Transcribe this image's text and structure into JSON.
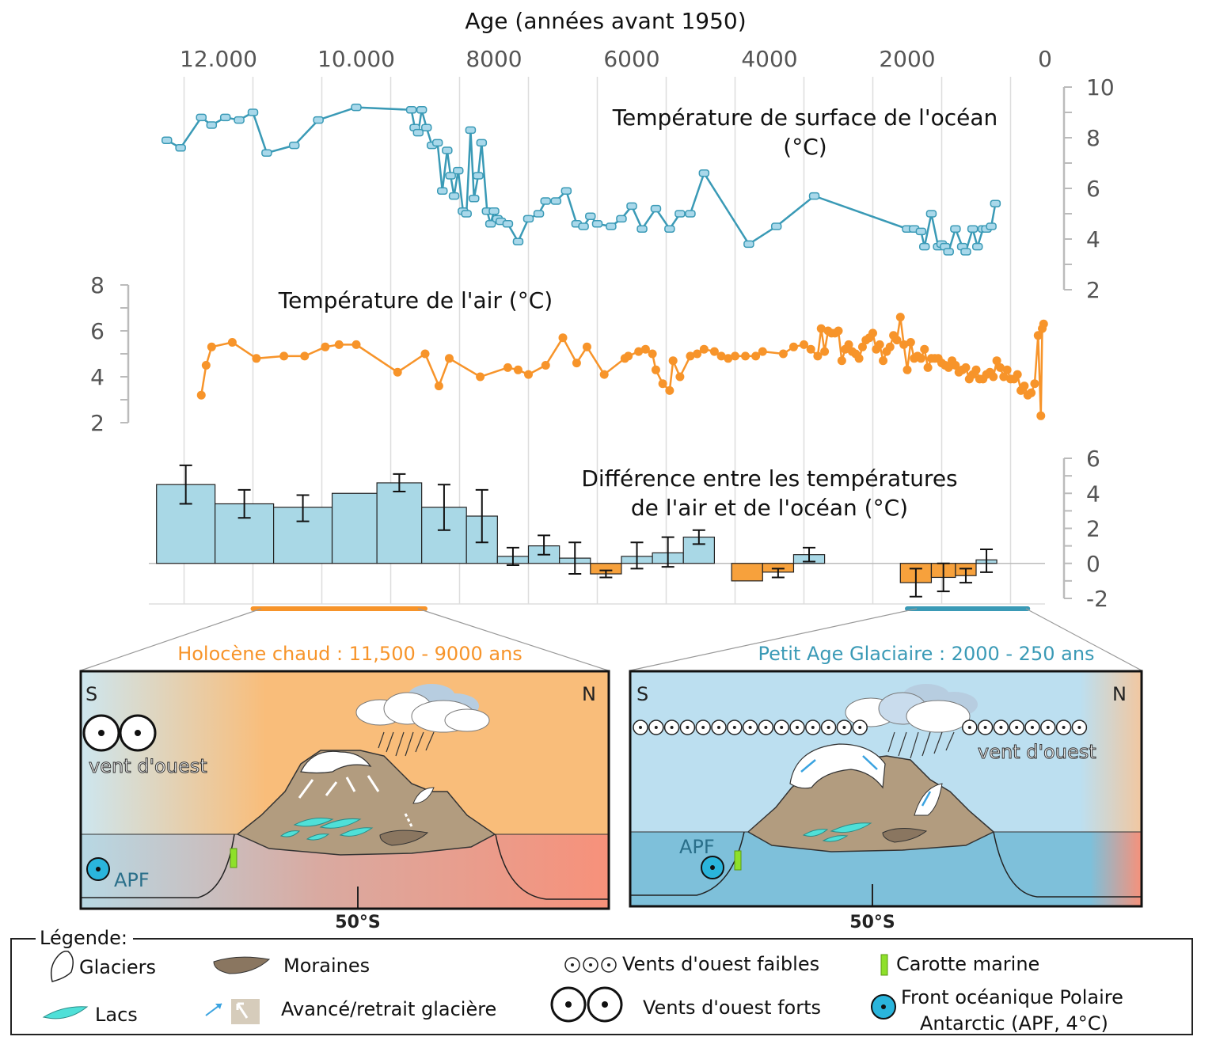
{
  "chart_data": [
    {
      "type": "line",
      "title": "Température de surface de l'océan (°C)",
      "title_lines": [
        "Température de surface de l'océan",
        "(°C)"
      ],
      "xlabel": "Age (années avant 1950)",
      "x_tick_labels": [
        "12.000",
        "10.000",
        "8000",
        "6000",
        "4000",
        "2000",
        "0"
      ],
      "x_ticks": [
        12000,
        10000,
        8000,
        6000,
        4000,
        2000,
        0
      ],
      "xlim": [
        13000,
        0
      ],
      "ylim": [
        2,
        10
      ],
      "y_ticks": [
        2,
        4,
        6,
        8,
        10
      ],
      "y_axis_side": "right",
      "color": "#3a9ab6",
      "marker_color": "#a9d8ea",
      "x": [
        12750,
        12550,
        12250,
        12100,
        11900,
        11700,
        11500,
        11300,
        10900,
        10550,
        10000,
        9200,
        9150,
        9100,
        9050,
        8980,
        8900,
        8820,
        8750,
        8680,
        8630,
        8580,
        8520,
        8450,
        8400,
        8340,
        8290,
        8230,
        8180,
        8100,
        8050,
        8000,
        7950,
        7900,
        7800,
        7650,
        7500,
        7350,
        7250,
        7100,
        6950,
        6800,
        6700,
        6600,
        6500,
        6300,
        6150,
        6000,
        5850,
        5650,
        5450,
        5300,
        5150,
        4950,
        4300,
        3900,
        3350,
        2000,
        1900,
        1800,
        1750,
        1650,
        1550,
        1500,
        1450,
        1400,
        1300,
        1200,
        1150,
        1050,
        980,
        900,
        850,
        780,
        720
      ],
      "y": [
        7.9,
        7.6,
        8.8,
        8.5,
        8.8,
        8.7,
        9.0,
        7.4,
        7.7,
        8.7,
        9.2,
        9.1,
        8.4,
        8.2,
        9.1,
        8.4,
        7.7,
        7.8,
        5.9,
        7.5,
        6.5,
        5.7,
        6.7,
        5.1,
        5.0,
        8.3,
        5.6,
        6.5,
        7.8,
        5.1,
        4.6,
        5.1,
        4.8,
        4.7,
        4.6,
        3.9,
        4.8,
        5.0,
        5.5,
        5.5,
        5.9,
        4.6,
        4.5,
        4.9,
        4.6,
        4.5,
        4.8,
        5.3,
        4.4,
        5.2,
        4.4,
        5.0,
        5.0,
        6.6,
        3.8,
        4.5,
        5.7,
        4.4,
        4.4,
        4.3,
        3.7,
        5.0,
        3.7,
        3.8,
        3.7,
        3.5,
        4.4,
        3.7,
        3.5,
        4.4,
        3.7,
        4.4,
        4.4,
        4.5,
        5.4
      ]
    },
    {
      "type": "line",
      "title": "Température de l'air (°C)",
      "xlim": [
        13000,
        0
      ],
      "ylim": [
        2,
        8
      ],
      "y_ticks": [
        2,
        4,
        6,
        8
      ],
      "y_axis_side": "left",
      "color": "#f7942a",
      "x": [
        12250,
        12180,
        12100,
        11800,
        11450,
        11050,
        10750,
        10450,
        10250,
        10000,
        9400,
        9000,
        8800,
        8650,
        8200,
        7800,
        7650,
        7500,
        7250,
        7000,
        6800,
        6650,
        6400,
        6100,
        6050,
        5900,
        5800,
        5700,
        5650,
        5550,
        5450,
        5400,
        5300,
        5150,
        5050,
        4950,
        4800,
        4700,
        4600,
        4500,
        4350,
        4200,
        4100,
        3800,
        3650,
        3500,
        3400,
        3300,
        3250,
        3200,
        3150,
        3100,
        3050,
        3000,
        2950,
        2900,
        2850,
        2800,
        2750,
        2700,
        2650,
        2600,
        2550,
        2500,
        2450,
        2400,
        2350,
        2300,
        2250,
        2200,
        2150,
        2100,
        2050,
        2000,
        1950,
        1900,
        1850,
        1800,
        1750,
        1700,
        1650,
        1600,
        1550,
        1500,
        1450,
        1400,
        1350,
        1300,
        1250,
        1200,
        1150,
        1100,
        1050,
        1000,
        950,
        900,
        850,
        800,
        750,
        700,
        650,
        600,
        550,
        500,
        450,
        400,
        350,
        300,
        250,
        200,
        150,
        100,
        60,
        40,
        20
      ],
      "y": [
        3.2,
        4.5,
        5.3,
        5.5,
        4.8,
        4.9,
        4.9,
        5.3,
        5.4,
        5.4,
        4.2,
        5.0,
        3.6,
        4.8,
        4.0,
        4.4,
        4.3,
        4.1,
        4.5,
        5.7,
        4.6,
        5.3,
        4.1,
        4.8,
        4.9,
        5.1,
        5.2,
        5.0,
        4.3,
        3.7,
        3.4,
        4.7,
        4.0,
        4.9,
        5.0,
        5.2,
        5.1,
        4.9,
        4.8,
        4.9,
        4.9,
        4.9,
        5.1,
        5.0,
        5.3,
        5.4,
        5.2,
        4.9,
        6.1,
        5.1,
        6.0,
        5.9,
        5.9,
        6.0,
        4.7,
        5.2,
        5.4,
        5.1,
        5.0,
        4.8,
        5.3,
        5.6,
        5.7,
        5.9,
        5.2,
        5.4,
        4.7,
        5.1,
        5.3,
        5.8,
        5.6,
        6.6,
        5.4,
        4.3,
        5.5,
        4.8,
        4.9,
        4.8,
        5.2,
        4.4,
        4.8,
        4.8,
        4.8,
        4.6,
        4.5,
        4.4,
        4.7,
        4.5,
        4.2,
        4.3,
        4.4,
        3.9,
        4.1,
        4.3,
        3.9,
        3.9,
        4.1,
        4.2,
        4.0,
        4.7,
        4.4,
        4.0,
        4.3,
        3.9,
        3.9,
        4.1,
        3.4,
        3.6,
        3.2,
        3.3,
        3.7,
        5.8,
        2.3,
        6.1,
        6.3
      ]
    },
    {
      "type": "bar",
      "title": "Différence entre les températures de l'air et de l'océan (°C)",
      "title_lines": [
        "Différence entre les températures",
        "de l'air et de l'océan (°C)"
      ],
      "xlim": [
        13000,
        0
      ],
      "ylim": [
        -2,
        6
      ],
      "y_ticks": [
        -2,
        0,
        2,
        4,
        6
      ],
      "y_axis_side": "right",
      "positive_color": "#a9d8e6",
      "negative_color": "#f7a13c",
      "bins": [
        {
          "x_start": 12900,
          "x_end": 12050,
          "value": 4.5,
          "err_low": 3.4,
          "err_high": 5.6
        },
        {
          "x_start": 12050,
          "x_end": 11200,
          "value": 3.4,
          "err_low": 2.6,
          "err_high": 4.2
        },
        {
          "x_start": 11200,
          "x_end": 10350,
          "value": 3.2,
          "err_low": 2.4,
          "err_high": 3.9
        },
        {
          "x_start": 10350,
          "x_end": 9700,
          "value": 4.0,
          "err_low": 4.0,
          "err_high": 4.0
        },
        {
          "x_start": 9700,
          "x_end": 9050,
          "value": 4.6,
          "err_low": 4.1,
          "err_high": 5.1
        },
        {
          "x_start": 9050,
          "x_end": 8400,
          "value": 3.2,
          "err_low": 1.9,
          "err_high": 4.5
        },
        {
          "x_start": 8400,
          "x_end": 7950,
          "value": 2.7,
          "err_low": 1.2,
          "err_high": 4.2
        },
        {
          "x_start": 7950,
          "x_end": 7500,
          "value": 0.4,
          "err_low": -0.1,
          "err_high": 0.9
        },
        {
          "x_start": 7500,
          "x_end": 7050,
          "value": 1.0,
          "err_low": 0.5,
          "err_high": 1.6
        },
        {
          "x_start": 7050,
          "x_end": 6600,
          "value": 0.3,
          "err_low": -0.6,
          "err_high": 1.2
        },
        {
          "x_start": 6600,
          "x_end": 6150,
          "value": -0.6,
          "err_low": -0.8,
          "err_high": -0.4
        },
        {
          "x_start": 6150,
          "x_end": 5700,
          "value": 0.4,
          "err_low": -0.3,
          "err_high": 1.2
        },
        {
          "x_start": 5700,
          "x_end": 5250,
          "value": 0.6,
          "err_low": -0.2,
          "err_high": 1.5
        },
        {
          "x_start": 5250,
          "x_end": 4800,
          "value": 1.5,
          "err_low": 1.1,
          "err_high": 1.9
        },
        {
          "x_start": 4550,
          "x_end": 4100,
          "value": -1.0,
          "err_low": -1.0,
          "err_high": -1.0
        },
        {
          "x_start": 4100,
          "x_end": 3650,
          "value": -0.5,
          "err_low": -0.8,
          "err_high": -0.3
        },
        {
          "x_start": 3650,
          "x_end": 3200,
          "value": 0.5,
          "err_low": 0.1,
          "err_high": 0.9
        },
        {
          "x_start": 2100,
          "x_end": 1650,
          "value": -1.1,
          "err_low": -1.9,
          "err_high": -0.3
        },
        {
          "x_start": 1650,
          "x_end": 1300,
          "value": -0.8,
          "err_low": -1.6,
          "err_high": 0.0
        },
        {
          "x_start": 1300,
          "x_end": 1000,
          "value": -0.7,
          "err_low": -1.1,
          "err_high": -0.3
        },
        {
          "x_start": 1000,
          "x_end": 700,
          "value": 0.2,
          "err_low": -0.5,
          "err_high": 0.8
        }
      ]
    }
  ],
  "periods": [
    {
      "label": "Holocène chaud : 11,500 - 9000 ans",
      "start": 11500,
      "end": 9000,
      "color": "#f7942a"
    },
    {
      "label": "Petit Age Glaciaire : 2000 - 250 ans",
      "start": 2000,
      "end": 250,
      "color": "#3a9ab6"
    }
  ],
  "panels": {
    "left": {
      "S": "S",
      "N": "N",
      "wind_label": "vent d'ouest",
      "apf_label": "APF",
      "latitude_label": "50°S",
      "colors": {
        "sky_left": "#cde6ef",
        "sky_right": "#f9bd7a",
        "sea_left": "#b7d8e4",
        "sea_right": "#f7917a"
      }
    },
    "right": {
      "S": "S",
      "N": "N",
      "wind_label": "vent d'ouest",
      "apf_label": "APF",
      "latitude_label": "50°S",
      "colors": {
        "sky": "#bcdff0",
        "sea": "#7ec0da",
        "right_edge": "#f4c39a"
      }
    }
  },
  "legend": {
    "title": "Légende:",
    "items": [
      {
        "label": "Glaciers",
        "icon": "glacier-icon"
      },
      {
        "label": "Lacs",
        "icon": "lake-icon"
      },
      {
        "label": "Moraines",
        "icon": "moraine-icon"
      },
      {
        "label": "Avancé/retrait glacière",
        "icon": "glacier-advance-arrow-icon"
      },
      {
        "label": "Vents d'ouest faibles",
        "icon": "weak-wind-icon"
      },
      {
        "label": "Vents d'ouest forts",
        "icon": "strong-wind-icon"
      },
      {
        "label": "Carotte marine",
        "icon": "marine-core-icon"
      },
      {
        "label": "Front océanique Polaire",
        "icon": "apf-icon"
      },
      {
        "label": "Antarctic (APF,  4°C)",
        "icon": ""
      }
    ]
  }
}
